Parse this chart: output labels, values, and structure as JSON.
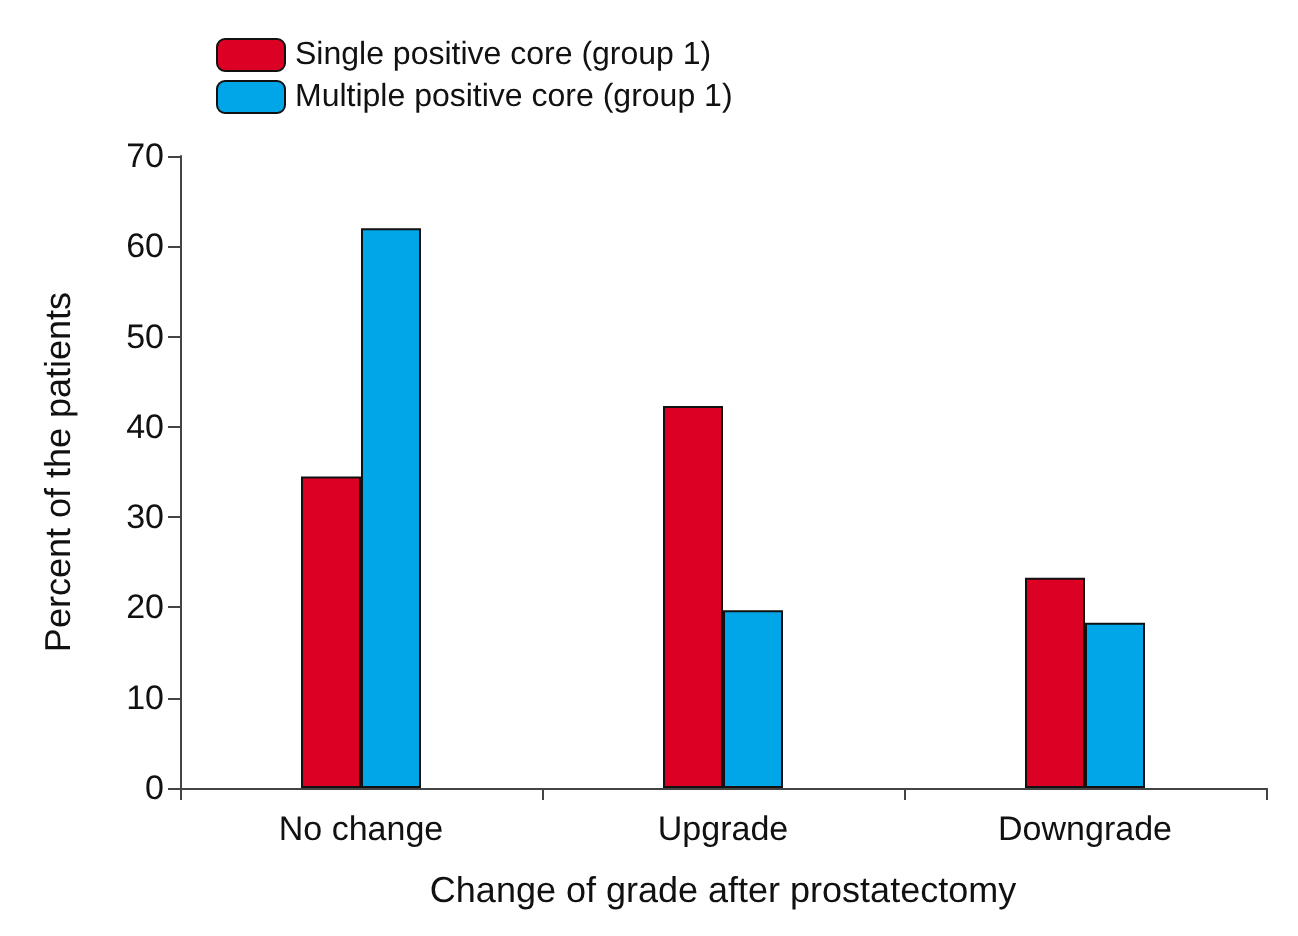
{
  "chart_data": {
    "type": "bar",
    "xlabel": "Change of grade after prostatectomy",
    "ylabel": "Percent of the patients",
    "categories": [
      "No change",
      "Upgrade",
      "Downgrade"
    ],
    "series": [
      {
        "name": "Single positive core (group 1)",
        "color": "#dc0024",
        "values": [
          34.5,
          42.3,
          23.3
        ]
      },
      {
        "name": "Multiple positive core (group 1)",
        "color": "#00a6e8",
        "values": [
          62.0,
          19.7,
          18.3
        ]
      }
    ],
    "ylim": [
      0,
      70
    ],
    "yticks": [
      0,
      10,
      20,
      30,
      40,
      50,
      60,
      70
    ],
    "grid": false,
    "legend": "top left"
  }
}
